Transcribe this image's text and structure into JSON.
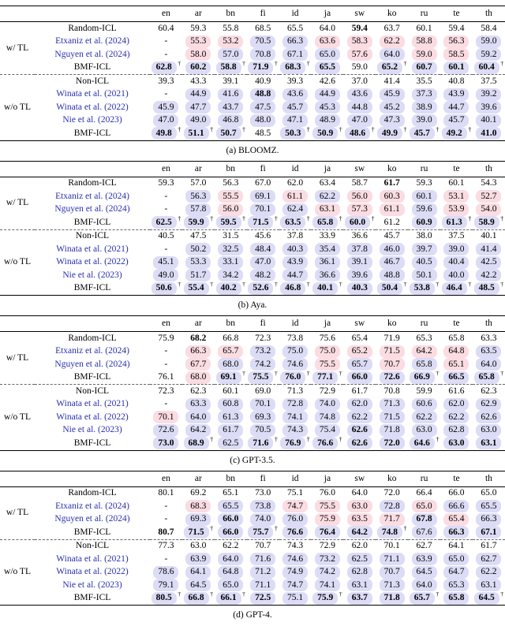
{
  "symbols": {
    "dagger": "†",
    "dash": "-"
  },
  "colors": {
    "highlight_better": "#dcdcf6",
    "highlight_worse": "#fadce2",
    "citation_link": "#2a2fb0"
  },
  "columns": [
    "en",
    "ar",
    "bn",
    "fi",
    "id",
    "ja",
    "sw",
    "ko",
    "ru",
    "te",
    "th"
  ],
  "tables": [
    {
      "id": "bloomz",
      "caption": "(a) BLOOMZ.",
      "blocks": [
        {
          "label": "w/ TL",
          "rows": [
            {
              "method": "Random-ICL",
              "cite": false,
              "cells": [
                "60.4",
                "59.3",
                "55.8",
                "68.5",
                "65.5",
                "64.0",
                "59.4;b",
                "63.7",
                "60.1",
                "59.4",
                "58.4"
              ]
            },
            {
              "method": "Etxaniz et al. (2024)",
              "cite": true,
              "cells": [
                "-",
                "55.3;P",
                "53.2;P",
                "70.5;B",
                "66.3;B",
                "63.6;P",
                "58.3;P",
                "62.2;P",
                "58.8;P",
                "56.3;P",
                "59.0;B"
              ]
            },
            {
              "method": "Nguyen et al. (2024)",
              "cite": true,
              "cells": [
                "-",
                "58.0;P",
                "57.0;B",
                "70.8;B",
                "67.1;B",
                "65.0;B",
                "57.6;P",
                "64.0;B",
                "59.0;P",
                "58.5;P",
                "59.2;B"
              ]
            },
            {
              "method": "BMF-ICL",
              "cite": false,
              "cells": [
                "62.8;bdB",
                "60.2;bB",
                "58.8;bdB",
                "71.9;bdB",
                "68.3;bdB",
                "65.5;bB",
                "59.0",
                "65.2;bdB",
                "60.7;bB",
                "60.1;bB",
                "60.4;bdB"
              ]
            }
          ]
        },
        {
          "label": "w/o TL",
          "rows": [
            {
              "method": "Non-ICL",
              "cite": false,
              "cells": [
                "39.3",
                "43.3",
                "39.1",
                "40.9",
                "39.3",
                "42.6",
                "37.0",
                "41.4",
                "35.5",
                "40.8",
                "37.5"
              ]
            },
            {
              "method": "Winata et al. (2021)",
              "cite": true,
              "cells": [
                "-",
                "44.9;B",
                "41.6;B",
                "48.8;bB",
                "43.6;B",
                "44.9;B",
                "43.6;B",
                "45.9;B",
                "37.3;B",
                "43.9;B",
                "39.2;B"
              ]
            },
            {
              "method": "Winata et al. (2022)",
              "cite": true,
              "cells": [
                "45.9;B",
                "47.7;B",
                "43.7;B",
                "47.5;B",
                "45.7;B",
                "45.3;B",
                "44.8;B",
                "45.2;B",
                "38.9;B",
                "44.7;B",
                "39.6;B"
              ]
            },
            {
              "method": "Nie et al. (2023)",
              "cite": true,
              "cells": [
                "47.0;B",
                "49.0;B",
                "46.8;B",
                "48.0;B",
                "47.1;B",
                "48.9;B",
                "47.0;B",
                "47.3;B",
                "39.0;B",
                "45.7;B",
                "40.1;B"
              ]
            },
            {
              "method": "BMF-ICL",
              "cite": false,
              "cells": [
                "49.8;bdB",
                "51.1;bdB",
                "50.7;bdB",
                "48.5",
                "50.3;bdB",
                "50.9;bdB",
                "48.6;bdB",
                "49.9;bdB",
                "45.7;bdB",
                "49.2;bdB",
                "41.0;bB"
              ]
            }
          ]
        }
      ]
    },
    {
      "id": "aya",
      "caption": "(b) Aya.",
      "blocks": [
        {
          "label": "w/ TL",
          "rows": [
            {
              "method": "Random-ICL",
              "cite": false,
              "cells": [
                "59.3",
                "57.0",
                "56.3",
                "67.0",
                "62.0",
                "63.4",
                "58.7",
                "61.7;b",
                "59.3",
                "60.1",
                "54.3"
              ]
            },
            {
              "method": "Etxaniz et al. (2024)",
              "cite": true,
              "cells": [
                "-",
                "56.3;B",
                "55.5;P",
                "69.1;B",
                "61.1;P",
                "62.2;B",
                "56.0;P",
                "60.3;P",
                "60.1;B",
                "53.1;P",
                "52.7;P"
              ]
            },
            {
              "method": "Nguyen et al. (2024)",
              "cite": true,
              "cells": [
                "-",
                "57.8;B",
                "56.0;P",
                "70.1;B",
                "62.4;B",
                "63.1;P",
                "57.3;P",
                "61.1;P",
                "59.6;B",
                "53.9;P",
                "54.0;P"
              ]
            },
            {
              "method": "BMF-ICL",
              "cite": false,
              "cells": [
                "62.5;bdB",
                "59.9;bdB",
                "59.5;bdB",
                "71.5;bdB",
                "63.5;bdB",
                "65.8;bdB",
                "60.0;bdB",
                "61.2",
                "60.9;bB",
                "61.3;bdB",
                "58.9;bdB"
              ]
            }
          ]
        },
        {
          "label": "w/o TL",
          "rows": [
            {
              "method": "Non-ICL",
              "cite": false,
              "cells": [
                "40.5",
                "47.5",
                "31.5",
                "45.6",
                "37.8",
                "33.9",
                "36.6",
                "45.7",
                "38.0",
                "37.5",
                "40.1"
              ]
            },
            {
              "method": "Winata et al. (2021)",
              "cite": true,
              "cells": [
                "-",
                "50.2;B",
                "32.5;B",
                "48.4;B",
                "40.3;B",
                "35.4;B",
                "37.8;B",
                "46.0;B",
                "39.7;B",
                "39.0;B",
                "41.4;B"
              ]
            },
            {
              "method": "Winata et al. (2022)",
              "cite": true,
              "cells": [
                "45.1;B",
                "53.3;B",
                "33.1;B",
                "47.0;B",
                "43.9;B",
                "36.1;B",
                "39.1;B",
                "46.7;B",
                "40.5;B",
                "40.4;B",
                "42.5;B"
              ]
            },
            {
              "method": "Nie et al. (2023)",
              "cite": true,
              "cells": [
                "49.0;B",
                "51.7;B",
                "34.2;B",
                "48.2;B",
                "44.7;B",
                "36.6;B",
                "39.6;B",
                "48.8;B",
                "50.1;B",
                "40.0;B",
                "42.2;B"
              ]
            },
            {
              "method": "BMF-ICL",
              "cite": false,
              "cells": [
                "50.6;bdB",
                "55.4;bdB",
                "40.2;bdB",
                "52.6;bdB",
                "46.8;bdB",
                "40.1;bdB",
                "40.3;bB",
                "50.4;bdB",
                "53.8;bdB",
                "46.4;bdB",
                "48.5;bdB"
              ]
            }
          ]
        }
      ]
    },
    {
      "id": "gpt35",
      "caption": "(c) GPT-3.5.",
      "blocks": [
        {
          "label": "w/ TL",
          "rows": [
            {
              "method": "Random-ICL",
              "cite": false,
              "cells": [
                "75.9",
                "68.2;b",
                "66.8",
                "72.3",
                "73.8",
                "75.6",
                "65.4",
                "71.9",
                "65.3",
                "65.8",
                "63.3"
              ]
            },
            {
              "method": "Etxaniz et al. (2024)",
              "cite": true,
              "cells": [
                "-",
                "66.3;P",
                "65.7;P",
                "73.2;B",
                "75.0;B",
                "75.0;P",
                "65.2;P",
                "71.5;P",
                "64.2;P",
                "64.8;P",
                "63.5;B"
              ]
            },
            {
              "method": "Nguyen et al. (2024)",
              "cite": true,
              "cells": [
                "-",
                "67.7;P",
                "68.0;B",
                "74.2;B",
                "74.6;B",
                "75.5;P",
                "65.7;B",
                "70.7;P",
                "65.8;B",
                "65.1;P",
                "64.0;B"
              ]
            },
            {
              "method": "BMF-ICL",
              "cite": false,
              "cells": [
                "76.1",
                "68.0;P",
                "69.1;bdB",
                "75.5;bdB",
                "76.0;bdB",
                "77.1;bdB",
                "66.0;bB",
                "72.6;bB",
                "66.9;bdB",
                "66.5;bB",
                "65.8;bdB"
              ]
            }
          ]
        },
        {
          "label": "w/o TL",
          "rows": [
            {
              "method": "Non-ICL",
              "cite": false,
              "cells": [
                "72.3",
                "62.3",
                "60.1",
                "69.0",
                "71.3",
                "72.9",
                "61.7",
                "70.8",
                "59.9",
                "61.6",
                "62.3"
              ]
            },
            {
              "method": "Winata et al. (2021)",
              "cite": true,
              "cells": [
                "-",
                "63.3;B",
                "60.8;B",
                "70.1;B",
                "72.8;B",
                "74.0;B",
                "62.0;B",
                "71.3;B",
                "60.6;B",
                "62.0;B",
                "62.9;B"
              ]
            },
            {
              "method": "Winata et al. (2022)",
              "cite": true,
              "cells": [
                "70.1;P",
                "64.0;B",
                "61.3;B",
                "69.3;B",
                "74.1;B",
                "74.8;B",
                "62.2;B",
                "71.5;B",
                "62.2;B",
                "62.2;B",
                "62.6;B"
              ]
            },
            {
              "method": "Nie et al. (2023)",
              "cite": true,
              "cells": [
                "72.6;B",
                "64.2;B",
                "61.7;B",
                "70.5;B",
                "74.3;B",
                "75.4;B",
                "62.6;bB",
                "71.8;B",
                "63.0;B",
                "62.8;B",
                "63.0;B"
              ]
            },
            {
              "method": "BMF-ICL",
              "cite": false,
              "cells": [
                "73.0;bB",
                "68.9;bdB",
                "62.5;B",
                "71.6;bdB",
                "76.9;bdB",
                "76.6;bdB",
                "62.6;bB",
                "72.0;bB",
                "64.6;bdB",
                "63.0;bB",
                "63.1;bB"
              ]
            }
          ]
        }
      ]
    },
    {
      "id": "gpt4",
      "caption": "(d) GPT-4.",
      "blocks": [
        {
          "label": "w/ TL",
          "rows": [
            {
              "method": "Random-ICL",
              "cite": false,
              "cells": [
                "80.1",
                "69.2",
                "65.1",
                "73.0",
                "75.1",
                "76.0",
                "64.0",
                "72.0",
                "66.4",
                "66.0",
                "65.0"
              ]
            },
            {
              "method": "Etxaniz et al. (2024)",
              "cite": true,
              "cells": [
                "-",
                "68.3;P",
                "65.5;B",
                "73.8;B",
                "74.7;P",
                "75.5;P",
                "63.0;P",
                "72.8;B",
                "65.0;P",
                "66.6;B",
                "65.5;B"
              ]
            },
            {
              "method": "Nguyen et al. (2024)",
              "cite": true,
              "cells": [
                "-",
                "69.3;B",
                "66.0;bB",
                "74.0;B",
                "76.0;B",
                "75.9;P",
                "63.5;P",
                "71.7;P",
                "67.8;bB",
                "65.4;P",
                "66.3;B"
              ]
            },
            {
              "method": "BMF-ICL",
              "cite": false,
              "cells": [
                "80.7;b",
                "71.5;bdB",
                "66.0;bB",
                "75.7;bdB",
                "76.6;bB",
                "76.4;bB",
                "64.2;bB",
                "74.8;bdB",
                "67.6;B",
                "66.3;bB",
                "67.1;bB"
              ]
            }
          ]
        },
        {
          "label": "w/o TL",
          "rows": [
            {
              "method": "Non-ICL",
              "cite": false,
              "cells": [
                "77.3",
                "63.0",
                "62.2",
                "70.7",
                "74.3",
                "72.9",
                "62.0",
                "70.1",
                "62.7",
                "64.1",
                "61.7"
              ]
            },
            {
              "method": "Winata et al. (2021)",
              "cite": true,
              "cells": [
                "-",
                "63.9;B",
                "64.0;B",
                "71.6;B",
                "74.6;B",
                "73.2;B",
                "62.5;B",
                "71.1;B",
                "63.9;B",
                "65.0;B",
                "62.7;B"
              ]
            },
            {
              "method": "Winata et al. (2022)",
              "cite": true,
              "cells": [
                "78.6;B",
                "64.1;B",
                "64.8;B",
                "71.2;B",
                "74.9;B",
                "74.2;B",
                "62.8;B",
                "70.7;B",
                "64.5;B",
                "64.7;B",
                "62.2;B"
              ]
            },
            {
              "method": "Nie et al. (2023)",
              "cite": true,
              "cells": [
                "79.1;B",
                "64.5;B",
                "65.0;B",
                "71.1;B",
                "74.7;B",
                "74.1;B",
                "63.1;B",
                "71.3;B",
                "64.0;B",
                "65.3;B",
                "63.1;B"
              ]
            },
            {
              "method": "BMF-ICL",
              "cite": false,
              "cells": [
                "80.5;bdB",
                "66.8;bdB",
                "66.1;bdB",
                "72.5;bB",
                "75.1;B",
                "75.9;bdB",
                "63.7;bB",
                "71.8;bB",
                "65.7;bdB",
                "65.8;bB",
                "64.5;bdB"
              ]
            }
          ]
        }
      ]
    }
  ]
}
